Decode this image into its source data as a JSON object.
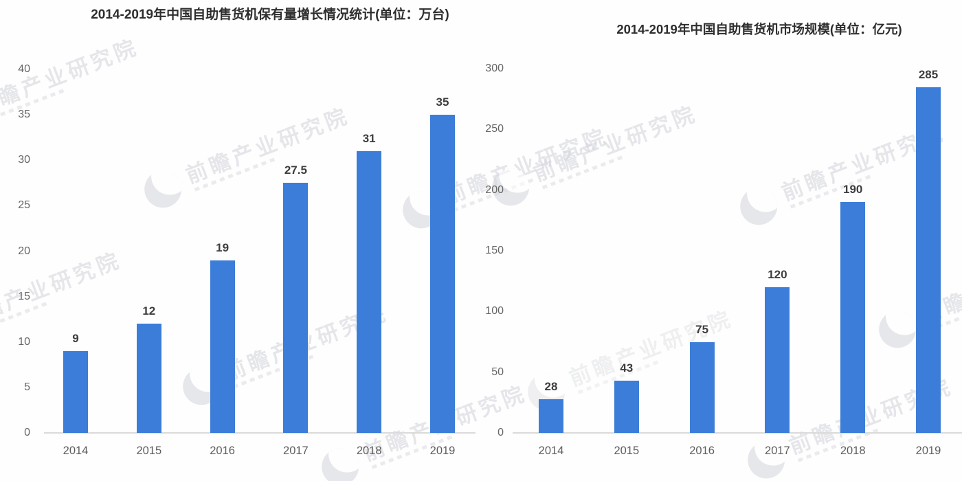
{
  "watermark": {
    "text": "前瞻产业研究院",
    "color": "#d2d4da"
  },
  "chart_data": [
    {
      "type": "bar",
      "title": "2014-2019年中国自助售货机保有量增长情况统计(单位：万台)",
      "categories": [
        "2014",
        "2015",
        "2016",
        "2017",
        "2018",
        "2019"
      ],
      "values": [
        9,
        12,
        19,
        27.5,
        31,
        35
      ],
      "xlabel": "",
      "ylabel": "",
      "ylim": [
        0,
        40
      ],
      "yticks": [
        0,
        5,
        10,
        15,
        20,
        25,
        30,
        35,
        40
      ],
      "bar_color": "#3b7dd8",
      "grid": false,
      "legend": false,
      "value_labels_shown": true
    },
    {
      "type": "bar",
      "title": "2014-2019年中国自助售货机市场规模(单位：亿元)",
      "categories": [
        "2014",
        "2015",
        "2016",
        "2017",
        "2018",
        "2019"
      ],
      "values": [
        28,
        43,
        75,
        120,
        190,
        285
      ],
      "xlabel": "",
      "ylabel": "",
      "ylim": [
        0,
        300
      ],
      "yticks": [
        0,
        50,
        100,
        150,
        200,
        250,
        300
      ],
      "bar_color": "#3b7dd8",
      "grid": false,
      "legend": false,
      "value_labels_shown": true
    }
  ]
}
